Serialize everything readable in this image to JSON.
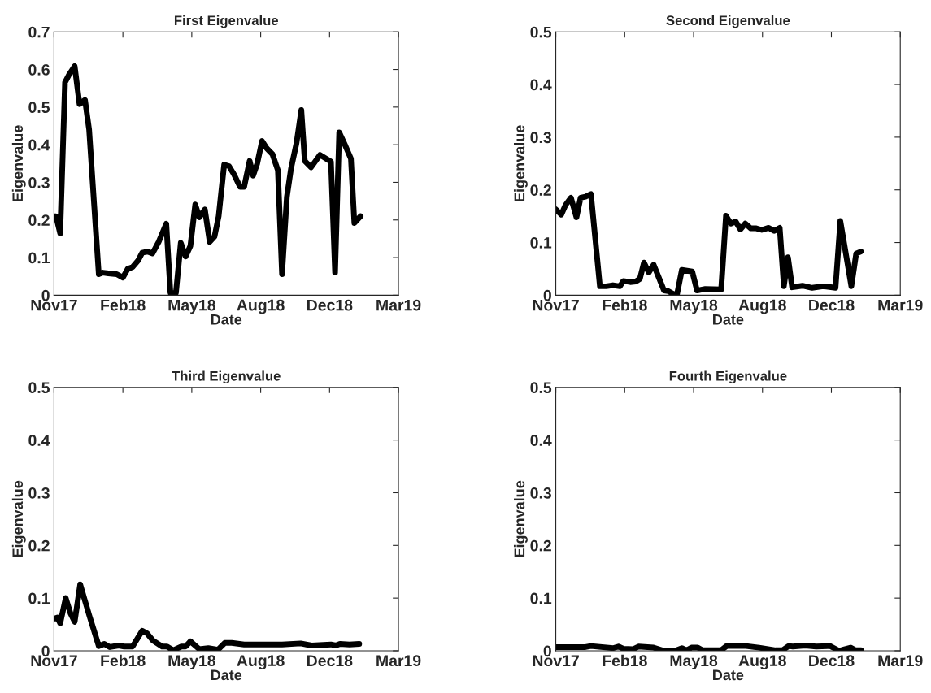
{
  "chart_data": [
    {
      "type": "line",
      "title": "First Eigenvalue",
      "xlabel": "Date",
      "ylabel": "Eigenvalue",
      "xlim": [
        "2017-11-01",
        "2019-03-16"
      ],
      "ylim": [
        0,
        0.7
      ],
      "xticks": [
        {
          "value": "2017-11-01",
          "label": "Nov17"
        },
        {
          "value": "2018-02-09",
          "label": "Feb18"
        },
        {
          "value": "2018-05-20",
          "label": "May18"
        },
        {
          "value": "2018-08-28",
          "label": "Aug18"
        },
        {
          "value": "2018-12-06",
          "label": "Dec18"
        },
        {
          "value": "2019-03-16",
          "label": "Mar19"
        }
      ],
      "yticks": [
        0,
        0.1,
        0.2,
        0.3,
        0.4,
        0.5,
        0.6,
        0.7
      ],
      "series": [
        {
          "color": "#000000",
          "x": [
            "2017-11-01",
            "2017-11-04",
            "2017-11-10",
            "2017-11-17",
            "2017-11-23",
            "2017-12-01",
            "2017-12-08",
            "2017-12-16",
            "2017-12-22",
            "2018-01-05",
            "2018-01-11",
            "2018-01-19",
            "2018-01-31",
            "2018-02-09",
            "2018-02-16",
            "2018-02-23",
            "2018-03-03",
            "2018-03-09",
            "2018-03-17",
            "2018-03-24",
            "2018-04-02",
            "2018-04-13",
            "2018-04-19",
            "2018-04-27",
            "2018-05-04",
            "2018-05-11",
            "2018-05-18",
            "2018-05-25",
            "2018-05-31",
            "2018-06-08",
            "2018-06-15",
            "2018-06-22",
            "2018-06-28",
            "2018-07-06",
            "2018-07-13",
            "2018-07-20",
            "2018-07-29",
            "2018-08-04",
            "2018-08-12",
            "2018-08-17",
            "2018-08-23",
            "2018-08-30",
            "2018-09-06",
            "2018-09-14",
            "2018-09-22",
            "2018-09-28",
            "2018-10-05",
            "2018-10-11",
            "2018-10-19",
            "2018-10-26",
            "2018-10-31",
            "2018-11-09",
            "2018-11-22",
            "2018-12-08",
            "2018-12-14",
            "2018-12-20",
            "2018-12-29",
            "2019-01-06",
            "2019-01-11",
            "2019-01-20"
          ],
          "values": [
            0.21,
            0.21,
            0.164,
            0.566,
            0.587,
            0.609,
            0.508,
            0.519,
            0.44,
            0.056,
            0.06,
            0.058,
            0.056,
            0.047,
            0.07,
            0.075,
            0.092,
            0.113,
            0.116,
            0.111,
            0.142,
            0.19,
            0.006,
            0.006,
            0.139,
            0.103,
            0.131,
            0.241,
            0.207,
            0.228,
            0.142,
            0.156,
            0.21,
            0.347,
            0.343,
            0.322,
            0.288,
            0.288,
            0.357,
            0.318,
            0.35,
            0.41,
            0.39,
            0.375,
            0.332,
            0.056,
            0.261,
            0.336,
            0.404,
            0.492,
            0.357,
            0.34,
            0.373,
            0.355,
            0.06,
            0.433,
            0.397,
            0.363,
            0.192,
            0.21
          ]
        }
      ]
    },
    {
      "type": "line",
      "title": "Second Eigenvalue",
      "xlabel": "Date",
      "ylabel": "Eigenvalue",
      "xlim": [
        "2017-11-01",
        "2019-03-16"
      ],
      "ylim": [
        0,
        0.5
      ],
      "xticks": [
        {
          "value": "2017-11-01",
          "label": "Nov17"
        },
        {
          "value": "2018-02-09",
          "label": "Feb18"
        },
        {
          "value": "2018-05-20",
          "label": "May18"
        },
        {
          "value": "2018-08-28",
          "label": "Aug18"
        },
        {
          "value": "2018-12-06",
          "label": "Dec18"
        },
        {
          "value": "2019-03-16",
          "label": "Mar19"
        }
      ],
      "yticks": [
        0,
        0.1,
        0.2,
        0.3,
        0.4,
        0.5
      ],
      "series": [
        {
          "color": "#000000",
          "x": [
            "2017-11-01",
            "2017-11-09",
            "2017-11-15",
            "2017-11-23",
            "2017-12-01",
            "2017-12-07",
            "2017-12-14",
            "2017-12-22",
            "2018-01-04",
            "2018-01-13",
            "2018-01-23",
            "2018-02-02",
            "2018-02-07",
            "2018-02-17",
            "2018-02-25",
            "2018-03-03",
            "2018-03-09",
            "2018-03-16",
            "2018-03-23",
            "2018-03-31",
            "2018-04-07",
            "2018-04-13",
            "2018-04-21",
            "2018-04-26",
            "2018-05-03",
            "2018-05-18",
            "2018-05-25",
            "2018-06-06",
            "2018-06-29",
            "2018-07-06",
            "2018-07-13",
            "2018-07-20",
            "2018-07-27",
            "2018-08-03",
            "2018-08-11",
            "2018-08-19",
            "2018-08-27",
            "2018-09-06",
            "2018-09-14",
            "2018-09-22",
            "2018-09-28",
            "2018-10-04",
            "2018-10-10",
            "2018-10-25",
            "2018-11-08",
            "2018-11-24",
            "2018-12-12",
            "2018-12-19",
            "2019-01-04",
            "2019-01-11",
            "2019-01-18"
          ],
          "values": [
            0.163,
            0.153,
            0.171,
            0.185,
            0.148,
            0.185,
            0.187,
            0.192,
            0.017,
            0.017,
            0.019,
            0.017,
            0.027,
            0.025,
            0.026,
            0.031,
            0.062,
            0.043,
            0.058,
            0.032,
            0.009,
            0.008,
            0.002,
            0.002,
            0.048,
            0.045,
            0.009,
            0.012,
            0.011,
            0.151,
            0.136,
            0.14,
            0.125,
            0.136,
            0.127,
            0.127,
            0.124,
            0.128,
            0.122,
            0.128,
            0.017,
            0.072,
            0.015,
            0.018,
            0.014,
            0.017,
            0.014,
            0.141,
            0.017,
            0.079,
            0.083
          ]
        }
      ]
    },
    {
      "type": "line",
      "title": "Third Eigenvalue",
      "xlabel": "Date",
      "ylabel": "Eigenvalue",
      "xlim": [
        "2017-11-01",
        "2019-03-16"
      ],
      "ylim": [
        0,
        0.5
      ],
      "xticks": [
        {
          "value": "2017-11-01",
          "label": "Nov17"
        },
        {
          "value": "2018-02-09",
          "label": "Feb18"
        },
        {
          "value": "2018-05-20",
          "label": "May18"
        },
        {
          "value": "2018-08-28",
          "label": "Aug18"
        },
        {
          "value": "2018-12-06",
          "label": "Dec18"
        },
        {
          "value": "2019-03-16",
          "label": "Mar19"
        }
      ],
      "yticks": [
        0,
        0.1,
        0.2,
        0.3,
        0.4,
        0.5
      ],
      "series": [
        {
          "color": "#000000",
          "x": [
            "2017-11-01",
            "2017-11-06",
            "2017-11-10",
            "2017-11-18",
            "2017-11-25",
            "2017-12-01",
            "2017-12-09",
            "2017-12-22",
            "2018-01-05",
            "2018-01-13",
            "2018-01-21",
            "2018-02-03",
            "2018-02-11",
            "2018-02-23",
            "2018-03-09",
            "2018-03-16",
            "2018-03-25",
            "2018-04-07",
            "2018-04-14",
            "2018-04-23",
            "2018-05-05",
            "2018-05-11",
            "2018-05-18",
            "2018-05-31",
            "2018-06-13",
            "2018-06-27",
            "2018-07-07",
            "2018-07-17",
            "2018-08-04",
            "2018-08-27",
            "2018-09-28",
            "2018-10-25",
            "2018-11-10",
            "2018-12-08",
            "2018-12-15",
            "2018-12-21",
            "2019-01-04",
            "2019-01-18"
          ],
          "values": [
            0.061,
            0.063,
            0.052,
            0.1,
            0.071,
            0.055,
            0.126,
            0.068,
            0.009,
            0.013,
            0.007,
            0.01,
            0.008,
            0.008,
            0.038,
            0.033,
            0.019,
            0.008,
            0.008,
            0.001,
            0.008,
            0.008,
            0.018,
            0.003,
            0.005,
            0.002,
            0.015,
            0.015,
            0.012,
            0.012,
            0.012,
            0.014,
            0.01,
            0.012,
            0.01,
            0.013,
            0.012,
            0.013
          ]
        }
      ]
    },
    {
      "type": "line",
      "title": "Fourth Eigenvalue",
      "xlabel": "Date",
      "ylabel": "Eigenvalue",
      "xlim": [
        "2017-11-01",
        "2019-03-16"
      ],
      "ylim": [
        0,
        0.5
      ],
      "xticks": [
        {
          "value": "2017-11-01",
          "label": "Nov17"
        },
        {
          "value": "2018-02-09",
          "label": "Feb18"
        },
        {
          "value": "2018-05-20",
          "label": "May18"
        },
        {
          "value": "2018-08-28",
          "label": "Aug18"
        },
        {
          "value": "2018-12-06",
          "label": "Dec18"
        },
        {
          "value": "2019-03-16",
          "label": "Mar19"
        }
      ],
      "yticks": [
        0,
        0.1,
        0.2,
        0.3,
        0.4,
        0.5
      ],
      "series": [
        {
          "color": "#000000",
          "x": [
            "2017-11-01",
            "2017-12-14",
            "2017-12-22",
            "2018-01-23",
            "2018-01-31",
            "2018-02-07",
            "2018-02-21",
            "2018-03-01",
            "2018-03-23",
            "2018-04-07",
            "2018-04-23",
            "2018-05-03",
            "2018-05-10",
            "2018-05-17",
            "2018-05-26",
            "2018-06-02",
            "2018-06-29",
            "2018-07-07",
            "2018-08-04",
            "2018-08-23",
            "2018-09-16",
            "2018-09-26",
            "2018-10-05",
            "2018-10-11",
            "2018-10-29",
            "2018-11-14",
            "2018-12-04",
            "2018-12-10",
            "2018-12-17",
            "2018-12-25",
            "2019-01-03",
            "2019-01-10",
            "2019-01-18"
          ],
          "values": [
            0.007,
            0.007,
            0.009,
            0.005,
            0.008,
            0.004,
            0.003,
            0.008,
            0.006,
            0.0,
            0.0,
            0.005,
            0.001,
            0.006,
            0.006,
            0.001,
            0.001,
            0.009,
            0.009,
            0.006,
            0.001,
            0.001,
            0.009,
            0.008,
            0.01,
            0.008,
            0.009,
            0.005,
            0.0,
            0.003,
            0.006,
            0.001,
            0.001
          ]
        }
      ]
    }
  ]
}
